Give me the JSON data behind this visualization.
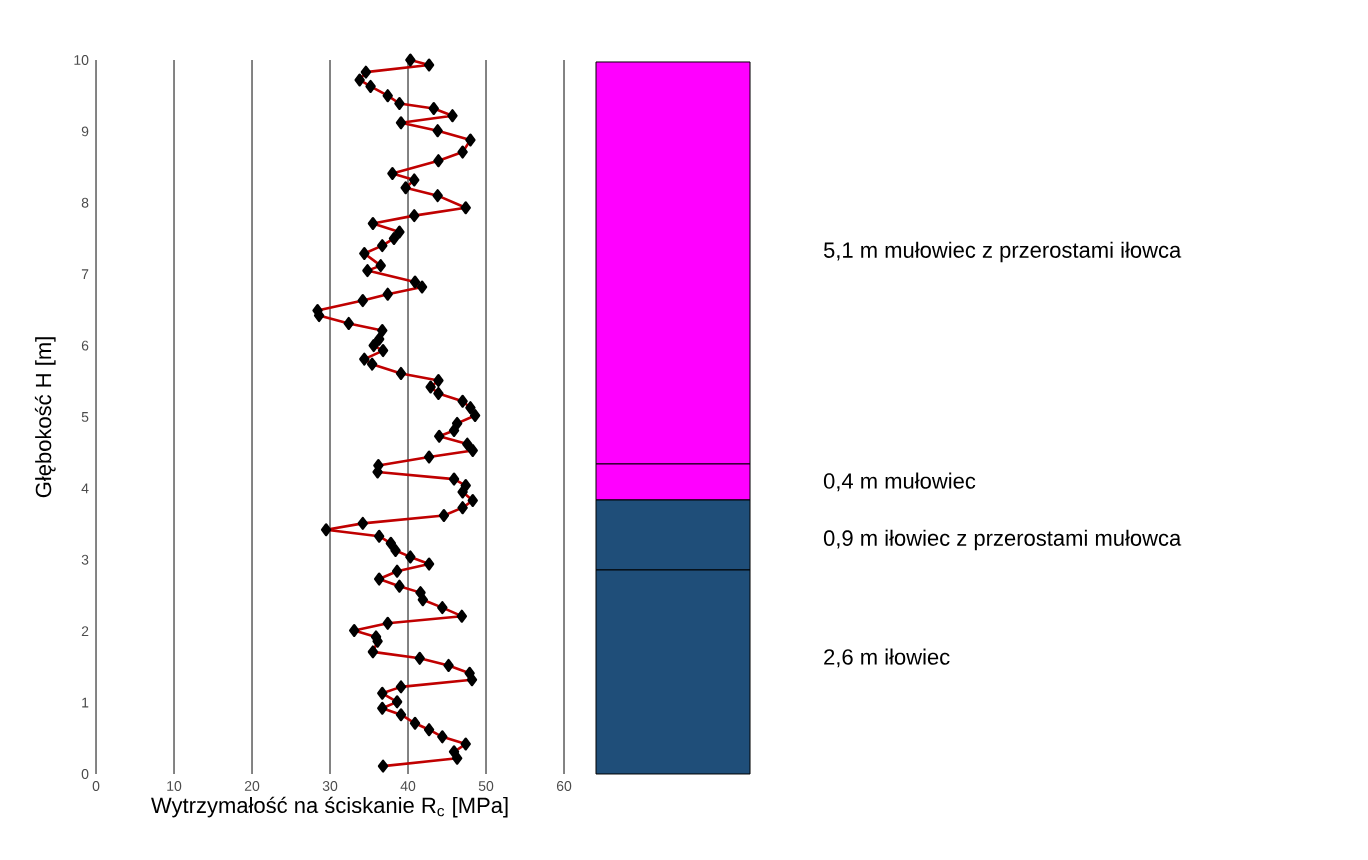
{
  "chart_data": [
    {
      "type": "line",
      "xlabel": "Wytrzymałość na ściskanie R$_{c}$ [MPa]",
      "ylabel": "Głębokość H [m]",
      "xlim": [
        0,
        60
      ],
      "xticks": [
        0,
        10,
        20,
        30,
        40,
        50,
        60
      ],
      "ylim": [
        0,
        10
      ],
      "yticks": [
        0,
        1,
        2,
        3,
        4,
        5,
        6,
        7,
        8,
        9,
        10
      ],
      "grid": "x",
      "marker": "diamond",
      "series": [
        {
          "color": "#c00000",
          "x": [
            40.3,
            42.7,
            34.6,
            33.8,
            35.2,
            37.4,
            38.9,
            43.3,
            45.7,
            39.1,
            43.8,
            48.0,
            47.0,
            43.9,
            38.0,
            40.8,
            39.7,
            43.8,
            47.4,
            40.8,
            35.5,
            38.9,
            38.2,
            36.7,
            34.4,
            36.5,
            34.8,
            40.9,
            41.8,
            37.4,
            34.2,
            28.4,
            28.6,
            32.4,
            36.7,
            36.3,
            35.6,
            36.8,
            34.4,
            35.4,
            39.1,
            43.9,
            42.9,
            43.9,
            47.0,
            48.0,
            48.6,
            46.3,
            45.9,
            44.0,
            47.6,
            48.3,
            42.7,
            36.2,
            36.1,
            45.9,
            47.4,
            47.0,
            48.3,
            47.0,
            44.6,
            34.2,
            29.5,
            36.3,
            37.8,
            38.4,
            40.3,
            42.7,
            38.6,
            36.3,
            38.9,
            41.6,
            41.9,
            44.4,
            46.9,
            37.4,
            33.1,
            35.9,
            36.1,
            35.5,
            41.5,
            45.2,
            47.9,
            48.2,
            39.1,
            36.7,
            38.6,
            36.7,
            39.1,
            40.9,
            42.7,
            44.4,
            47.4,
            45.9,
            46.3,
            36.8
          ],
          "values": [
            10.0,
            9.93,
            9.83,
            9.72,
            9.63,
            9.5,
            9.39,
            9.32,
            9.22,
            9.12,
            9.01,
            8.88,
            8.71,
            8.59,
            8.41,
            8.32,
            8.21,
            8.1,
            7.93,
            7.82,
            7.71,
            7.59,
            7.5,
            7.4,
            7.29,
            7.12,
            7.05,
            6.89,
            6.82,
            6.72,
            6.63,
            6.49,
            6.42,
            6.31,
            6.21,
            6.09,
            6.0,
            5.93,
            5.81,
            5.74,
            5.61,
            5.51,
            5.42,
            5.33,
            5.22,
            5.13,
            5.02,
            4.91,
            4.81,
            4.73,
            4.62,
            4.53,
            4.44,
            4.32,
            4.23,
            4.13,
            4.04,
            3.95,
            3.83,
            3.73,
            3.62,
            3.51,
            3.42,
            3.33,
            3.23,
            3.13,
            3.04,
            2.94,
            2.84,
            2.73,
            2.63,
            2.54,
            2.44,
            2.33,
            2.21,
            2.11,
            2.01,
            1.92,
            1.86,
            1.71,
            1.62,
            1.52,
            1.41,
            1.32,
            1.22,
            1.13,
            1.01,
            0.92,
            0.83,
            0.71,
            0.62,
            0.52,
            0.42,
            0.31,
            0.22,
            0.11
          ]
        }
      ]
    },
    {
      "type": "other",
      "annotations": [
        "5,1 m mułowiec z przerostami iłowca",
        "0,4 m mułowiec",
        "0,9 m iłowiec z przerostami mułowca",
        "2,6 m iłowiec"
      ]
    }
  ]
}
